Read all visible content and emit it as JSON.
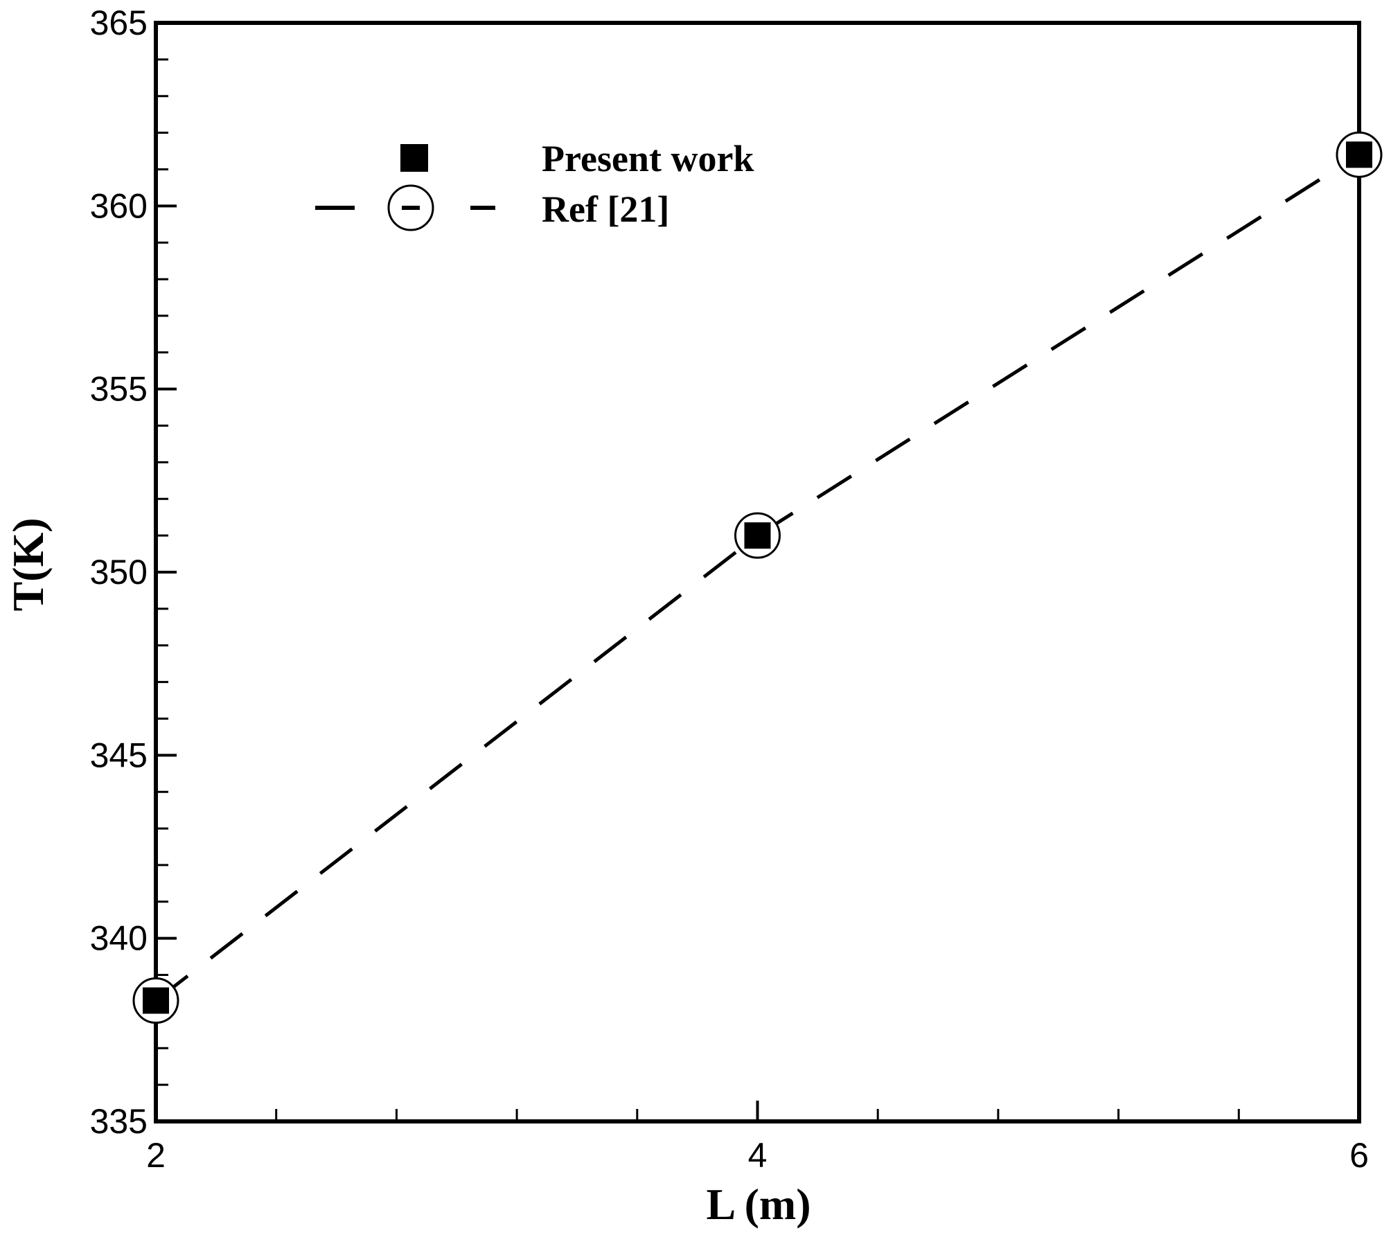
{
  "chart_data": {
    "type": "line",
    "title": "",
    "xlabel": "L (m)",
    "ylabel": "T(K)",
    "xlim": [
      2,
      6
    ],
    "ylim": [
      335,
      365
    ],
    "xticks_major": [
      2,
      4,
      6
    ],
    "xtick_labels": [
      "2",
      "4",
      "6"
    ],
    "xticks_minor_step": 0.4,
    "yticks_major": [
      335,
      340,
      345,
      350,
      355,
      360,
      365
    ],
    "ytick_labels": [
      "335",
      "340",
      "345",
      "350",
      "355",
      "360",
      "365"
    ],
    "yticks_minor_step": 1,
    "grid": false,
    "legend_position": "top-left",
    "series": [
      {
        "name": "Present work",
        "style": "markers",
        "marker": "filled-square",
        "color": "#000000",
        "x": [
          2,
          4,
          6
        ],
        "y": [
          338.3,
          351.0,
          361.4
        ]
      },
      {
        "name": "Ref [21]",
        "style": "dashed-line",
        "marker": "open-circle",
        "color": "#000000",
        "x": [
          2,
          4,
          6
        ],
        "y": [
          338.3,
          351.0,
          361.4
        ]
      }
    ]
  }
}
